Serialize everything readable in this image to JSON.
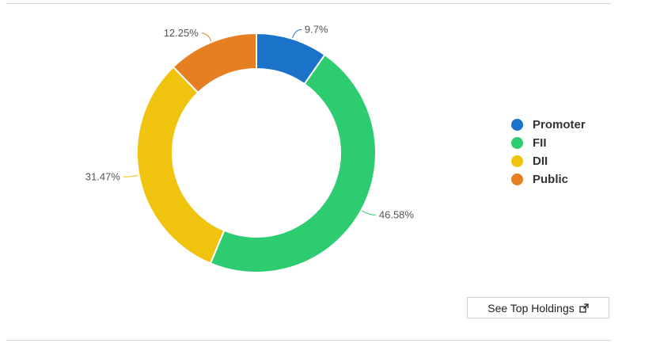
{
  "chart_data": {
    "type": "pie",
    "variant": "donut",
    "categories": [
      "Promoter",
      "FII",
      "DII",
      "Public"
    ],
    "values": [
      9.7,
      46.58,
      31.47,
      12.25
    ],
    "labels": [
      "9.7%",
      "46.58%",
      "31.47%",
      "12.25%"
    ],
    "colors": [
      "#1a73c8",
      "#2ecc71",
      "#f0c30f",
      "#e67e22"
    ],
    "legend_position": "right"
  },
  "legend": {
    "items": [
      {
        "label": "Promoter",
        "color": "#1a73c8"
      },
      {
        "label": "FII",
        "color": "#2ecc71"
      },
      {
        "label": "DII",
        "color": "#f0c30f"
      },
      {
        "label": "Public",
        "color": "#e67e22"
      }
    ]
  },
  "actions": {
    "see_top_holdings_label": "See Top Holdings",
    "see_top_holdings_icon": "external-link-icon"
  }
}
